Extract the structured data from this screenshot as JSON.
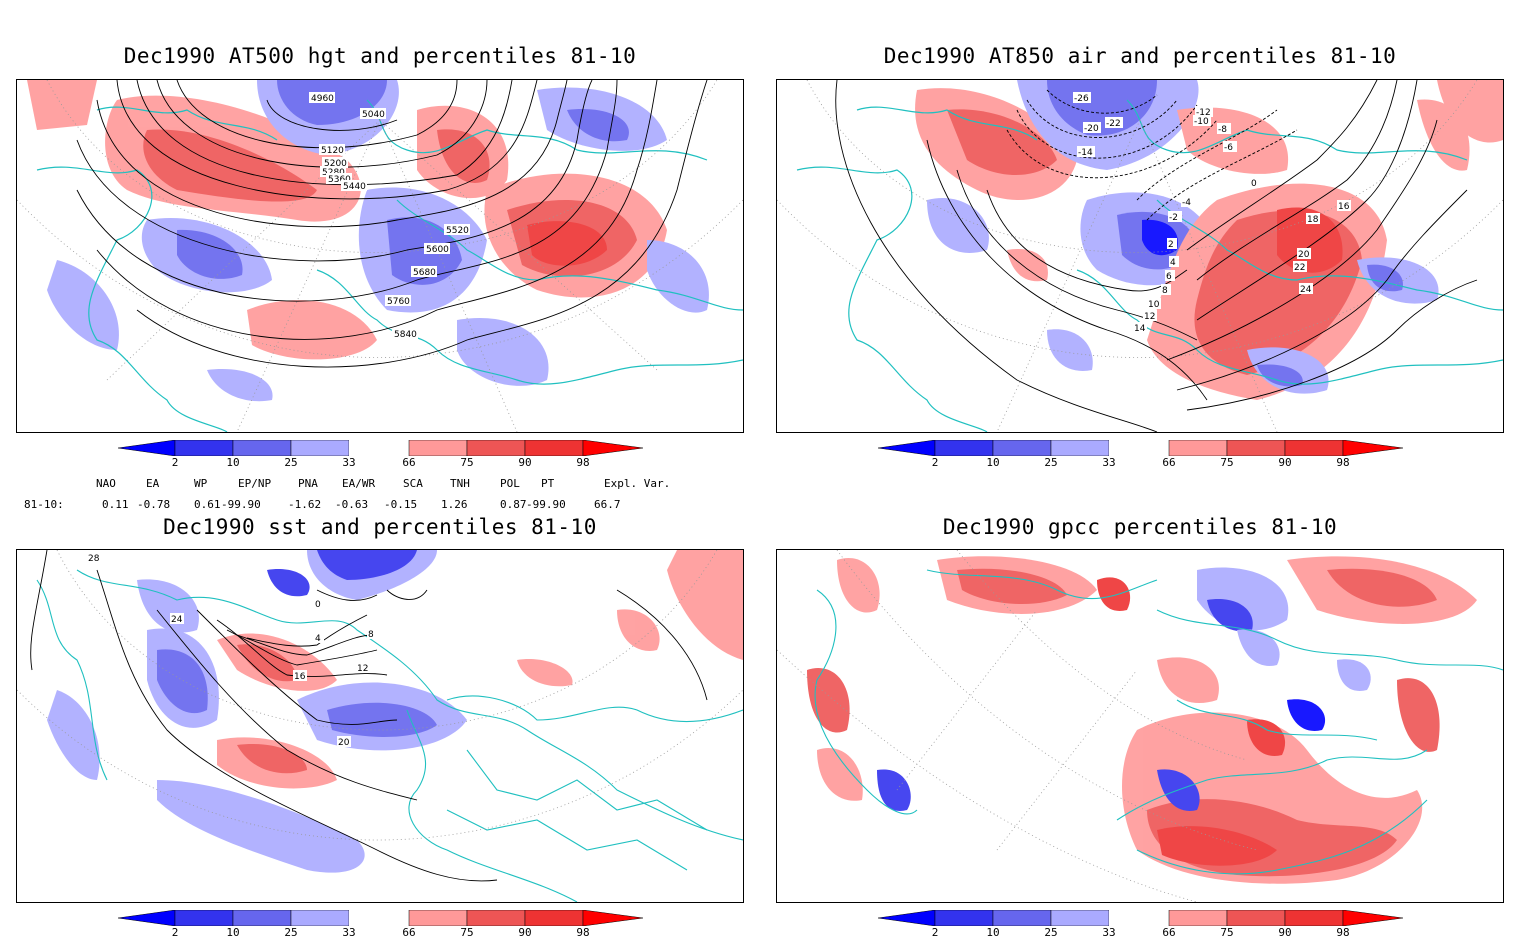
{
  "panels": [
    {
      "id": "hgt500",
      "title": "Dec1990 AT500 hgt and percentiles 81-10",
      "contour_labels": [
        "4960",
        "5040",
        "5120",
        "5200",
        "5280",
        "5360",
        "5440",
        "5520",
        "5600",
        "5680",
        "5760",
        "5840"
      ]
    },
    {
      "id": "air850",
      "title": "Dec1990 AT850 air and percentiles 81-10",
      "contour_labels": [
        "-26",
        "-22",
        "-20",
        "-14",
        "-12",
        "-10",
        "-8",
        "-6",
        "-4",
        "-2",
        "0",
        "2",
        "4",
        "6",
        "8",
        "10",
        "12",
        "14",
        "16",
        "18",
        "20",
        "22",
        "24"
      ]
    },
    {
      "id": "sst",
      "title": "Dec1990 sst and percentiles 81-10",
      "contour_labels": [
        "28",
        "24",
        "20",
        "16",
        "12",
        "8",
        "4",
        "0"
      ]
    },
    {
      "id": "gpcc",
      "title": "Dec1990 gpcc percentiles 81-10",
      "contour_labels": []
    }
  ],
  "colorbar": {
    "ticks": [
      "2",
      "10",
      "25",
      "33",
      "66",
      "75",
      "90",
      "98"
    ],
    "colors": {
      "deep_blue": "#0000ff",
      "blue": "#3333ee",
      "mid_blue": "#6666ee",
      "light_blue": "#aaaaff",
      "light_red": "#ff9999",
      "red": "#ee5555",
      "mid_red": "#ee3333",
      "deep_red": "#ff0000",
      "coast": "#20c0c0"
    }
  },
  "teleconnections": {
    "headers": [
      "NAO",
      "EA",
      "WP",
      "EP/NP",
      "PNA",
      "EA/WR",
      "SCA",
      "TNH",
      "POL",
      "PT",
      "Expl. Var."
    ],
    "row_label": "81-10:",
    "values": [
      "0.11",
      "-0.78",
      "0.61",
      "-99.90",
      "-1.62",
      "-0.63",
      "-0.15",
      "1.26",
      "0.87",
      "-99.90",
      "66.7"
    ]
  }
}
